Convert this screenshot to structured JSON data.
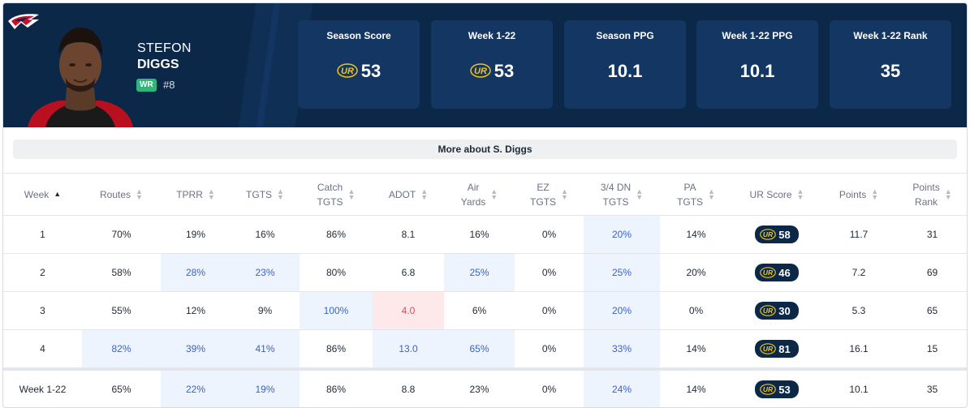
{
  "player": {
    "first_name": "STEFON",
    "last_name": "DIGGS",
    "position": "WR",
    "number": "#8"
  },
  "stats": [
    {
      "label": "Season Score",
      "value": "53",
      "has_ur_logo": true
    },
    {
      "label": "Week 1-22",
      "value": "53",
      "has_ur_logo": true
    },
    {
      "label": "Season PPG",
      "value": "10.1",
      "has_ur_logo": false
    },
    {
      "label": "Week 1-22 PPG",
      "value": "10.1",
      "has_ur_logo": false
    },
    {
      "label": "Week 1-22 Rank",
      "value": "35",
      "has_ur_logo": false
    }
  ],
  "more_button": "More about S. Diggs",
  "table": {
    "columns": [
      {
        "label_lines": [
          "Week"
        ],
        "sort": "asc"
      },
      {
        "label_lines": [
          "Routes"
        ],
        "sort": "none"
      },
      {
        "label_lines": [
          "TPRR"
        ],
        "sort": "none"
      },
      {
        "label_lines": [
          "TGTS"
        ],
        "sort": "none"
      },
      {
        "label_lines": [
          "Catch",
          "TGTS"
        ],
        "sort": "none"
      },
      {
        "label_lines": [
          "ADOT"
        ],
        "sort": "none"
      },
      {
        "label_lines": [
          "Air",
          "Yards"
        ],
        "sort": "none"
      },
      {
        "label_lines": [
          "EZ",
          "TGTS"
        ],
        "sort": "none"
      },
      {
        "label_lines": [
          "3/4 DN",
          "TGTS"
        ],
        "sort": "none"
      },
      {
        "label_lines": [
          "PA",
          "TGTS"
        ],
        "sort": "none"
      },
      {
        "label_lines": [
          "UR Score"
        ],
        "sort": "none"
      },
      {
        "label_lines": [
          "Points"
        ],
        "sort": "none"
      },
      {
        "label_lines": [
          "Points",
          "Rank"
        ],
        "sort": "none"
      }
    ],
    "rows": [
      {
        "cells": [
          "1",
          "70%",
          "19%",
          "16%",
          "86%",
          "8.1",
          "16%",
          "0%",
          "20%",
          "14%",
          "58",
          "11.7",
          "31"
        ],
        "highlight": [
          8
        ]
      },
      {
        "cells": [
          "2",
          "58%",
          "28%",
          "23%",
          "80%",
          "6.8",
          "25%",
          "0%",
          "25%",
          "20%",
          "46",
          "7.2",
          "69"
        ],
        "highlight": [
          2,
          3,
          6,
          8
        ]
      },
      {
        "cells": [
          "3",
          "55%",
          "12%",
          "9%",
          "100%",
          "4.0",
          "6%",
          "0%",
          "20%",
          "0%",
          "30",
          "5.3",
          "65"
        ],
        "highlight": [
          4,
          8
        ],
        "bad": [
          5
        ]
      },
      {
        "cells": [
          "4",
          "82%",
          "39%",
          "41%",
          "86%",
          "13.0",
          "65%",
          "0%",
          "33%",
          "14%",
          "81",
          "16.1",
          "15"
        ],
        "highlight": [
          1,
          2,
          3,
          5,
          6,
          8
        ]
      }
    ],
    "total": {
      "cells": [
        "Week 1-22",
        "65%",
        "22%",
        "19%",
        "86%",
        "8.8",
        "23%",
        "0%",
        "24%",
        "14%",
        "53",
        "10.1",
        "35"
      ],
      "highlight": [
        2,
        3,
        8
      ]
    }
  },
  "colors": {
    "header_bg": "#0c2849",
    "stat_box_bg": "#143663",
    "ur_logo_yellow": "#f3c316",
    "highlight_bg": "#eef4fd",
    "highlight_text": "#3a63c7",
    "bad_bg": "#fde8ea",
    "bad_text": "#e04b5a",
    "position_badge": "#2fb67b"
  },
  "icons": {
    "team_logo": "patriots-logo-icon",
    "ur_logo": "ur-logo-icon",
    "sort": "sort-arrows-icon"
  }
}
